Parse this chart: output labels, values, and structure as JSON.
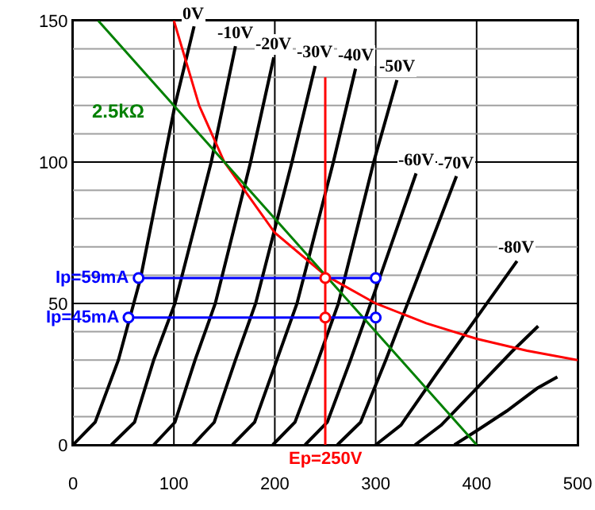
{
  "chart_data": {
    "type": "line",
    "xlim": [
      0,
      500
    ],
    "ylim": [
      0,
      150
    ],
    "xticks": [
      0,
      100,
      200,
      300,
      400,
      500
    ],
    "yticks": [
      0,
      {
        "value": 10,
        "label": null
      },
      {
        "value": 20,
        "label": null
      },
      {
        "value": 30,
        "label": null
      },
      {
        "value": 40,
        "label": null
      },
      50,
      {
        "value": 60,
        "label": null
      },
      {
        "value": 70,
        "label": null
      },
      {
        "value": 80,
        "label": null
      },
      {
        "value": 90,
        "label": null
      },
      100,
      {
        "value": 110,
        "label": null
      },
      {
        "value": 120,
        "label": null
      },
      {
        "value": 130,
        "label": null
      },
      {
        "value": 140,
        "label": null
      },
      150
    ],
    "grid": true,
    "series": [
      {
        "name": "0V",
        "color": "#000000",
        "x": [
          0,
          22,
          45,
          67,
          101,
          120
        ],
        "values": [
          0,
          8,
          30,
          59,
          120,
          148
        ]
      },
      {
        "name": "-10V",
        "color": "#000000",
        "x": [
          38,
          61,
          80,
          101,
          137,
          161
        ],
        "values": [
          0,
          8,
          30,
          50,
          100,
          141
        ]
      },
      {
        "name": "-20V",
        "color": "#000000",
        "x": [
          80,
          101,
          121,
          141,
          176,
          199
        ],
        "values": [
          0,
          8,
          30,
          50,
          100,
          137
        ]
      },
      {
        "name": "-30V",
        "color": "#000000",
        "x": [
          119,
          140,
          161,
          181,
          217,
          240
        ],
        "values": [
          0,
          8,
          30,
          50,
          100,
          134
        ]
      },
      {
        "name": "-40V",
        "color": "#000000",
        "x": [
          158,
          180,
          200,
          222,
          258,
          280
        ],
        "values": [
          0,
          8,
          28,
          50,
          100,
          133
        ]
      },
      {
        "name": "-50V",
        "color": "#000000",
        "x": [
          198,
          220,
          241,
          263,
          298,
          321
        ],
        "values": [
          0,
          8,
          28,
          50,
          100,
          129
        ]
      },
      {
        "name": "-60V",
        "color": "#000000",
        "x": [
          230,
          252,
          275,
          300,
          340
        ],
        "values": [
          0,
          8,
          30,
          55,
          96
        ]
      },
      {
        "name": "-70V",
        "color": "#000000",
        "x": [
          262,
          285,
          310,
          337,
          380
        ],
        "values": [
          0,
          8,
          30,
          55,
          95
        ]
      },
      {
        "name": "-80V",
        "color": "#000000",
        "x": [
          300,
          325,
          360,
          400,
          440
        ],
        "values": [
          0,
          7,
          25,
          45,
          65
        ]
      },
      {
        "color": "#000000",
        "x": [
          339,
          365,
          400,
          435,
          461
        ],
        "values": [
          0,
          7,
          20,
          33,
          42
        ]
      },
      {
        "color": "#000000",
        "x": [
          378,
          400,
          430,
          460,
          480
        ],
        "values": [
          0,
          5,
          12,
          20,
          24
        ]
      },
      {
        "color": "#ff0000",
        "x": [
          100,
          125,
          150,
          200,
          250,
          300,
          350,
          400,
          450,
          500
        ],
        "values": [
          150,
          120,
          100,
          75,
          60,
          50,
          43,
          37.5,
          33.3,
          30
        ]
      },
      {
        "name": "2.5kΩ",
        "color": "#008000",
        "x": [
          25,
          105,
          400
        ],
        "values": [
          150,
          118,
          0
        ]
      },
      {
        "name": "Ep=250V",
        "color": "#ff0000",
        "x": [
          250,
          250
        ],
        "values": [
          0,
          130
        ]
      },
      {
        "name": "Ip=59mA",
        "color": "#0000ff",
        "marker": "circle",
        "x": [
          65,
          300
        ],
        "values": [
          59,
          59
        ]
      },
      {
        "name": "Ip=45mA",
        "color": "#0000ff",
        "marker": "circle",
        "x": [
          55,
          300
        ],
        "values": [
          45,
          45
        ]
      },
      {
        "type": "scatter",
        "color": "#ff0000",
        "marker": "circle",
        "x": [
          250,
          250
        ],
        "values": [
          59,
          45
        ]
      }
    ]
  }
}
